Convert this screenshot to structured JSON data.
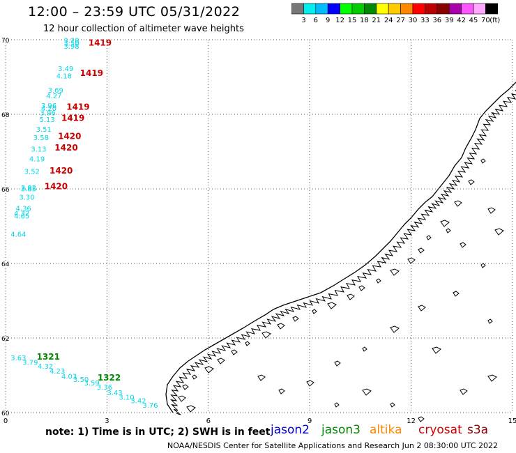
{
  "header": {
    "title": "12:00 – 23:59 UTC 05/31/2022",
    "subtitle": "12 hour collection of altimeter wave heights"
  },
  "colorbar": {
    "unit": "(ft)",
    "labels": [
      "3",
      "6",
      "9",
      "12",
      "15",
      "18",
      "21",
      "24",
      "27",
      "30",
      "33",
      "36",
      "39",
      "42",
      "45",
      "70"
    ],
    "colors": [
      "#777777",
      "#00eeee",
      "#00bbff",
      "#0000ff",
      "#00ff00",
      "#00cc00",
      "#008800",
      "#ffff00",
      "#ffcc00",
      "#ff8800",
      "#ff0000",
      "#bb0000",
      "#880000",
      "#aa00aa",
      "#ff55ff",
      "#ffaaff",
      "#000000"
    ]
  },
  "chart_data": {
    "type": "map",
    "xlim": [
      0,
      15
    ],
    "ylim": [
      60,
      70
    ],
    "x_ticks": [
      "0",
      "3",
      "6",
      "9",
      "12",
      "15"
    ],
    "y_ticks": [
      "60",
      "62",
      "64",
      "66",
      "68",
      "70"
    ],
    "grid": true,
    "satellites": [
      {
        "name": "jason2",
        "color": "#0000cc"
      },
      {
        "name": "jason3",
        "color": "#008800"
      },
      {
        "name": "altika",
        "color": "#ff8800"
      },
      {
        "name": "cryosat",
        "color": "#cc0000"
      },
      {
        "name": "s3a",
        "color": "#880000"
      }
    ],
    "wave_labels": [
      {
        "lon": 1.72,
        "lat": 69.92,
        "text": "3.28"
      },
      {
        "lon": 1.72,
        "lat": 69.84,
        "text": "3.50"
      },
      {
        "lon": 1.72,
        "lat": 69.76,
        "text": "3.98"
      },
      {
        "lon": 1.55,
        "lat": 69.16,
        "text": "3.49"
      },
      {
        "lon": 1.5,
        "lat": 68.96,
        "text": "4.18"
      },
      {
        "lon": 1.25,
        "lat": 68.58,
        "text": "3.69"
      },
      {
        "lon": 1.2,
        "lat": 68.43,
        "text": "4.27"
      },
      {
        "lon": 1.05,
        "lat": 68.17,
        "text": "3.96"
      },
      {
        "lon": 1.05,
        "lat": 68.09,
        "text": "4.20"
      },
      {
        "lon": 1.02,
        "lat": 67.97,
        "text": "3.96"
      },
      {
        "lon": 1.0,
        "lat": 67.79,
        "text": "5.13"
      },
      {
        "lon": 0.9,
        "lat": 67.53,
        "text": "3.51"
      },
      {
        "lon": 0.82,
        "lat": 67.31,
        "text": "3.58"
      },
      {
        "lon": 0.75,
        "lat": 67.0,
        "text": "3.13"
      },
      {
        "lon": 0.7,
        "lat": 66.74,
        "text": "4.19"
      },
      {
        "lon": 0.55,
        "lat": 66.4,
        "text": "3.52"
      },
      {
        "lon": 0.45,
        "lat": 65.96,
        "text": "3.82"
      },
      {
        "lon": 0.45,
        "lat": 65.93,
        "text": "3.85"
      },
      {
        "lon": 0.4,
        "lat": 65.71,
        "text": "3.30"
      },
      {
        "lon": 0.3,
        "lat": 65.41,
        "text": "4.36"
      },
      {
        "lon": 0.25,
        "lat": 65.28,
        "text": "4.32"
      },
      {
        "lon": 0.25,
        "lat": 65.21,
        "text": "4.65"
      },
      {
        "lon": 0.15,
        "lat": 64.72,
        "text": "4.64"
      },
      {
        "lon": 0.15,
        "lat": 61.4,
        "text": "3.63"
      },
      {
        "lon": 0.5,
        "lat": 61.28,
        "text": "3.79"
      },
      {
        "lon": 0.95,
        "lat": 61.18,
        "text": "4.32"
      },
      {
        "lon": 1.3,
        "lat": 61.05,
        "text": "4.23"
      },
      {
        "lon": 1.65,
        "lat": 60.91,
        "text": "4.03"
      },
      {
        "lon": 2.0,
        "lat": 60.82,
        "text": "3.50"
      },
      {
        "lon": 2.32,
        "lat": 60.73,
        "text": "3.59"
      },
      {
        "lon": 2.7,
        "lat": 60.62,
        "text": "3.36"
      },
      {
        "lon": 3.0,
        "lat": 60.47,
        "text": "3.43"
      },
      {
        "lon": 3.35,
        "lat": 60.35,
        "text": "3.10"
      },
      {
        "lon": 3.7,
        "lat": 60.25,
        "text": "3.42"
      },
      {
        "lon": 4.05,
        "lat": 60.13,
        "text": "3.76"
      }
    ],
    "time_labels": [
      {
        "lon": 2.45,
        "lat": 69.84,
        "text": "1419",
        "sat": "cryosat"
      },
      {
        "lon": 2.2,
        "lat": 69.03,
        "text": "1419",
        "sat": "cryosat"
      },
      {
        "lon": 1.8,
        "lat": 68.12,
        "text": "1419",
        "sat": "cryosat"
      },
      {
        "lon": 1.65,
        "lat": 67.82,
        "text": "1419",
        "sat": "cryosat"
      },
      {
        "lon": 1.55,
        "lat": 67.34,
        "text": "1420",
        "sat": "cryosat"
      },
      {
        "lon": 1.45,
        "lat": 67.03,
        "text": "1420",
        "sat": "cryosat"
      },
      {
        "lon": 1.3,
        "lat": 66.41,
        "text": "1420",
        "sat": "cryosat"
      },
      {
        "lon": 1.15,
        "lat": 65.99,
        "text": "1420",
        "sat": "cryosat"
      },
      {
        "lon": 0.92,
        "lat": 61.42,
        "text": "1321",
        "sat": "jason3"
      },
      {
        "lon": 2.72,
        "lat": 60.86,
        "text": "1322",
        "sat": "jason3"
      }
    ]
  },
  "footer": {
    "note": "note: 1) Time is in UTC; 2) SWH is in feet",
    "credit": "NOAA/NESDIS Center for Satellite Applications and Research    Jun  2 08:30:00 UTC 2022"
  }
}
